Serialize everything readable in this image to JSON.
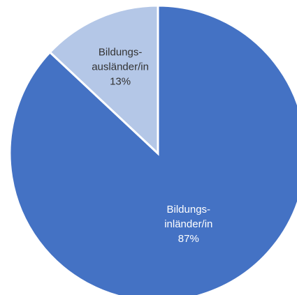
{
  "chart_data": {
    "type": "pie",
    "title": "",
    "categories": [
      "Bildungs-inländer/in",
      "Bildungs-ausländer/in"
    ],
    "values": [
      87,
      13
    ],
    "unit": "%",
    "slices": [
      {
        "name": "Bildungs-inländer/in",
        "label_lines": [
          "Bildungs-",
          "inländer/in",
          "87%"
        ],
        "value": 87,
        "color": "#4472C4",
        "label_color": "#ffffff"
      },
      {
        "name": "Bildungs-ausländer/in",
        "label_lines": [
          "Bildungs-",
          "ausländer/in",
          "13%"
        ],
        "value": 13,
        "color": "#B4C7E7",
        "label_color": "#333333"
      }
    ],
    "start_angle_deg": 0,
    "direction": "clockwise",
    "slice_border_color": "#ffffff",
    "legend": "none"
  }
}
